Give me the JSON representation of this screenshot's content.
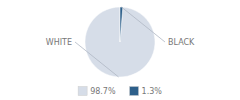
{
  "chart_data": {
    "type": "pie",
    "categories": [
      "WHITE",
      "BLACK"
    ],
    "values": [
      98.7,
      1.3
    ],
    "value_labels": [
      "98.7%",
      "1.3%"
    ],
    "colors": [
      "#d6dde8",
      "#2d5f8a"
    ],
    "legend": "bottom"
  }
}
